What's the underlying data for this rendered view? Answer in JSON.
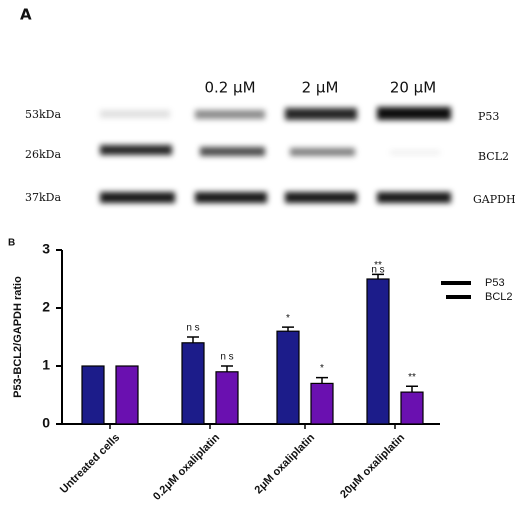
{
  "blot": {
    "panel": "A",
    "columns": [
      "0.2 μM",
      "2 μM",
      "20 μM"
    ],
    "rows": [
      {
        "size": "53kDa",
        "protein": "P53"
      },
      {
        "size": "26kDa",
        "protein": "BCL2"
      },
      {
        "size": "37kDa",
        "protein": "GAPDH"
      }
    ]
  },
  "chart_data": {
    "type": "bar",
    "panel": "B",
    "ylabel": "P53-BCL2/GAPDH ratio",
    "categories": [
      "Untreated cells",
      "0.2μM oxaliplatin",
      "2μM oxaliplatin",
      "20μM oxaliplatin"
    ],
    "series": [
      {
        "name": "P53",
        "color": "#1c1c8a",
        "values": [
          1,
          1.4,
          1.6,
          2.5
        ],
        "errors": [
          0,
          0.1,
          0.07,
          0.08
        ],
        "labels": [
          null,
          "n s",
          "*",
          "**"
        ]
      },
      {
        "name": "BCL2",
        "color": "#6a10b0",
        "values": [
          1,
          0.9,
          0.7,
          0.55
        ],
        "errors": [
          0,
          0.1,
          0.1,
          0.1
        ],
        "labels": [
          null,
          "n s",
          "*",
          "**"
        ]
      }
    ],
    "annotations": [
      "n s"
    ],
    "ylim": [
      0,
      3
    ],
    "yticks": [
      0,
      1,
      2,
      3
    ]
  }
}
